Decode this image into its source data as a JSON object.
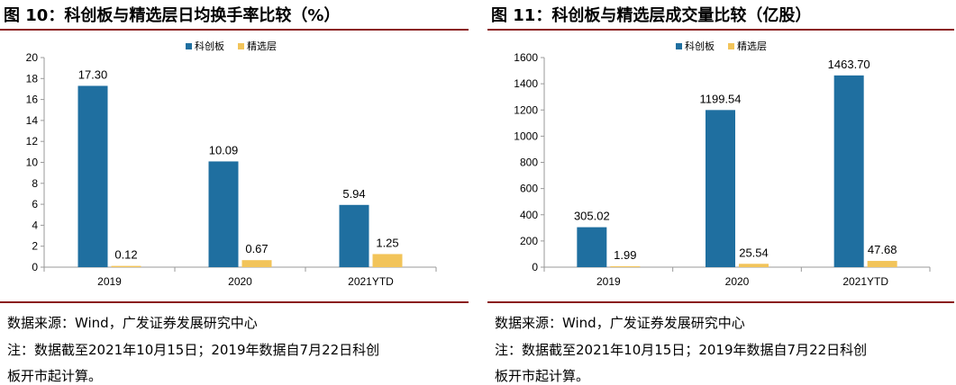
{
  "colors": {
    "kcb": "#1f6fa0",
    "jxc": "#f2c45a",
    "rule": "#8a1c1c",
    "axis": "#999999"
  },
  "left": {
    "title": "图 10：科创板与精选层日均换手率比较（%）",
    "source": "数据来源：Wind，广发证券发展研究中心",
    "note_line1": "注：数据截至2021年10月15日；2019年数据自7月22日科创",
    "note_line2": "板开市起计算。",
    "chart_data": {
      "type": "bar",
      "categories": [
        "2019",
        "2020",
        "2021YTD"
      ],
      "series": [
        {
          "name": "科创板",
          "values": [
            17.3,
            10.09,
            5.94
          ],
          "labels": [
            "17.30",
            "10.09",
            "5.94"
          ]
        },
        {
          "name": "精选层",
          "values": [
            0.12,
            0.67,
            1.25
          ],
          "labels": [
            "0.12",
            "0.67",
            "1.25"
          ]
        }
      ],
      "ylim": [
        0,
        20
      ],
      "yticks": [
        0,
        2,
        4,
        6,
        8,
        10,
        12,
        14,
        16,
        18,
        20
      ],
      "legend": "top-center",
      "grid": false
    }
  },
  "right": {
    "title": "图 11：科创板与精选层成交量比较（亿股）",
    "source": "数据来源：Wind，广发证券发展研究中心",
    "note_line1": "注：数据截至2021年10月15日；2019年数据自7月22日科创",
    "note_line2": "板开市起计算。",
    "chart_data": {
      "type": "bar",
      "categories": [
        "2019",
        "2020",
        "2021YTD"
      ],
      "series": [
        {
          "name": "科创板",
          "values": [
            305.02,
            1199.54,
            1463.7
          ],
          "labels": [
            "305.02",
            "1199.54",
            "1463.70"
          ]
        },
        {
          "name": "精选层",
          "values": [
            1.99,
            25.54,
            47.68
          ],
          "labels": [
            "1.99",
            "25.54",
            "47.68"
          ]
        }
      ],
      "ylim": [
        0,
        1600
      ],
      "yticks": [
        0,
        200,
        400,
        600,
        800,
        1000,
        1200,
        1400,
        1600
      ],
      "legend": "top-center",
      "grid": false
    }
  }
}
